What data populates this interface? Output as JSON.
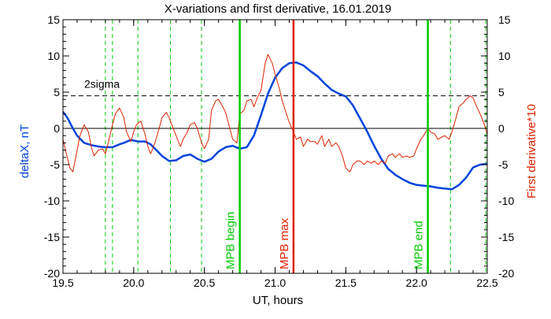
{
  "chart_data": {
    "type": "line",
    "title": "X-variations and first derivative, 16.01.2019",
    "xlabel": "UT, hours",
    "ylabel_left": "deltaX, nT",
    "ylabel_right": "First derivative*10",
    "xlim": [
      19.5,
      22.5
    ],
    "ylim": [
      -20,
      15
    ],
    "xticks": [
      "19.5",
      "20.0",
      "20.5",
      "21.0",
      "21.5",
      "22.0",
      "22.5"
    ],
    "yticks_left": [
      "15",
      "10",
      "5",
      "0",
      "-5",
      "-10",
      "-15",
      "-20"
    ],
    "yticks_right": [
      "15",
      "10",
      "5",
      "0",
      "-5",
      "-10",
      "-15",
      "-20"
    ],
    "threshold": {
      "label": "2sigma",
      "value": 4.5,
      "style": "dashed",
      "color": "#000000"
    },
    "zero_line": {
      "value": 0,
      "color": "#000000"
    },
    "dashed_markers": {
      "x": [
        19.8,
        19.85,
        20.03,
        20.26,
        20.48,
        22.24,
        22.49
      ],
      "color": "#00cc00"
    },
    "vertical_markers": [
      {
        "label": "MPB begin",
        "x": 20.75,
        "color": "#00cc00"
      },
      {
        "label": "MPB max",
        "x": 21.13,
        "color": "#dd2200"
      },
      {
        "label": "MPB end",
        "x": 22.08,
        "color": "#00cc00"
      }
    ],
    "series": [
      {
        "axis": "left",
        "color": "#0044dd",
        "x": [
          19.5,
          19.53,
          19.57,
          19.6,
          19.65,
          19.7,
          19.75,
          19.8,
          19.85,
          19.9,
          19.93,
          19.98,
          20.03,
          20.08,
          20.12,
          20.17,
          20.2,
          20.25,
          20.3,
          20.35,
          20.4,
          20.45,
          20.5,
          20.55,
          20.6,
          20.65,
          20.7,
          20.75,
          20.8,
          20.85,
          20.9,
          20.95,
          21.0,
          21.05,
          21.1,
          21.15,
          21.2,
          21.25,
          21.3,
          21.35,
          21.4,
          21.45,
          21.5,
          21.55,
          21.6,
          21.65,
          21.7,
          21.75,
          21.8,
          21.85,
          21.9,
          21.95,
          22.0,
          22.05,
          22.1,
          22.15,
          22.2,
          22.25,
          22.3,
          22.35,
          22.4,
          22.45,
          22.5
        ],
        "y": [
          2.3,
          1.5,
          0.0,
          -1.0,
          -2.0,
          -2.3,
          -2.5,
          -2.6,
          -2.6,
          -2.2,
          -2.0,
          -1.6,
          -1.8,
          -1.8,
          -2.2,
          -3.2,
          -3.8,
          -4.5,
          -4.4,
          -3.8,
          -3.6,
          -4.2,
          -4.6,
          -4.2,
          -3.2,
          -2.6,
          -2.4,
          -2.8,
          -2.6,
          -1.0,
          1.8,
          4.8,
          7.0,
          8.3,
          9.0,
          9.1,
          8.7,
          7.9,
          7.2,
          6.2,
          5.3,
          4.8,
          4.4,
          3.2,
          1.4,
          -0.4,
          -2.4,
          -4.2,
          -5.6,
          -6.4,
          -7.0,
          -7.5,
          -7.8,
          -7.9,
          -8.0,
          -8.2,
          -8.3,
          -8.4,
          -7.8,
          -6.8,
          -5.4,
          -5.0,
          -4.9
        ]
      },
      {
        "axis": "right",
        "color": "#dd2200",
        "x": [
          19.5,
          19.53,
          19.55,
          19.57,
          19.6,
          19.62,
          19.65,
          19.68,
          19.7,
          19.72,
          19.75,
          19.78,
          19.8,
          19.82,
          19.85,
          19.87,
          19.9,
          19.93,
          19.95,
          19.98,
          20.0,
          20.02,
          20.05,
          20.08,
          20.1,
          20.12,
          20.15,
          20.18,
          20.2,
          20.23,
          20.25,
          20.28,
          20.3,
          20.33,
          20.35,
          20.38,
          20.4,
          20.43,
          20.45,
          20.48,
          20.5,
          20.53,
          20.55,
          20.58,
          20.6,
          20.63,
          20.65,
          20.68,
          20.7,
          20.73,
          20.75,
          20.78,
          20.8,
          20.83,
          20.85,
          20.88,
          20.9,
          20.93,
          20.95,
          20.98,
          21.0,
          21.03,
          21.05,
          21.08,
          21.1,
          21.13,
          21.15,
          21.18,
          21.2,
          21.23,
          21.25,
          21.28,
          21.3,
          21.33,
          21.35,
          21.38,
          21.4,
          21.43,
          21.45,
          21.48,
          21.5,
          21.53,
          21.55,
          21.58,
          21.6,
          21.63,
          21.65,
          21.68,
          21.7,
          21.73,
          21.75,
          21.78,
          21.8,
          21.83,
          21.85,
          21.88,
          21.9,
          21.93,
          21.95,
          21.98,
          22.0,
          22.03,
          22.05,
          22.08,
          22.1,
          22.13,
          22.15,
          22.18,
          22.2,
          22.23,
          22.25,
          22.28,
          22.3,
          22.33,
          22.35,
          22.38,
          22.4,
          22.43,
          22.45,
          22.48,
          22.5
        ],
        "y": [
          -1.5,
          -4.0,
          -5.5,
          -6.0,
          -3.0,
          -1.0,
          0.5,
          -0.5,
          -2.5,
          -3.8,
          -3.0,
          -2.8,
          -3.5,
          -2.0,
          0.5,
          2.0,
          2.8,
          1.5,
          -0.5,
          -1.8,
          -0.5,
          0.5,
          1.0,
          -0.8,
          -2.5,
          -3.5,
          -2.0,
          0.0,
          1.5,
          2.2,
          1.5,
          0.0,
          -1.0,
          -2.5,
          -1.5,
          -0.5,
          0.5,
          0.8,
          0.0,
          -2.0,
          -2.8,
          -1.5,
          2.5,
          3.8,
          4.0,
          3.0,
          2.2,
          0.0,
          -1.5,
          -2.0,
          2.0,
          2.5,
          3.8,
          4.0,
          3.0,
          4.5,
          5.2,
          9.0,
          10.2,
          9.0,
          7.5,
          5.5,
          3.8,
          2.0,
          0.8,
          -0.5,
          -1.5,
          -1.2,
          -2.5,
          -1.5,
          -1.8,
          -1.8,
          -2.2,
          -1.0,
          -2.5,
          -1.5,
          -2.5,
          -2.0,
          -2.5,
          -4.0,
          -5.5,
          -6.0,
          -5.0,
          -4.5,
          -4.5,
          -5.0,
          -4.5,
          -4.8,
          -4.5,
          -5.0,
          -4.5,
          -4.8,
          -3.8,
          -3.5,
          -4.0,
          -3.5,
          -4.0,
          -3.8,
          -4.0,
          -3.8,
          -2.8,
          -1.5,
          -1.0,
          0.0,
          -0.5,
          -0.8,
          -1.5,
          -1.2,
          -1.0,
          -1.5,
          -0.5,
          1.5,
          3.0,
          3.5,
          4.0,
          4.5,
          4.2,
          2.8,
          2.0,
          0.5,
          -0.8
        ]
      }
    ]
  }
}
